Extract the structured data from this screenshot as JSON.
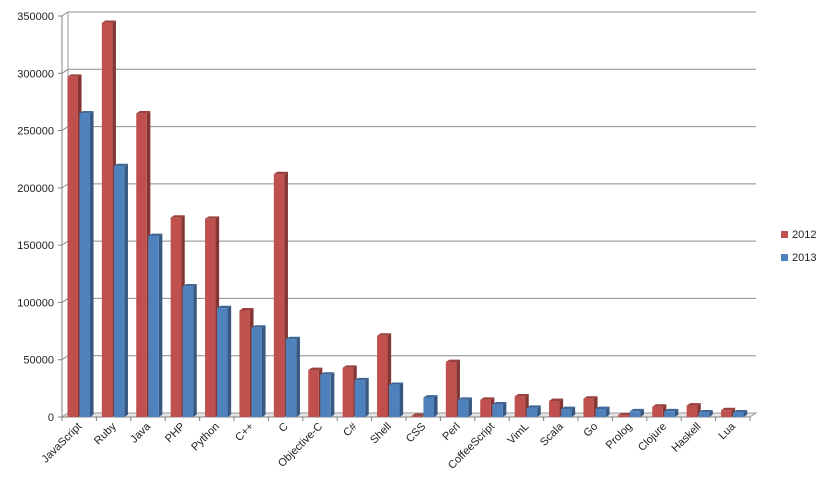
{
  "chart_data": {
    "type": "bar",
    "title": "",
    "xlabel": "",
    "ylabel": "",
    "ylim": [
      0,
      350000
    ],
    "yticks": [
      0,
      50000,
      100000,
      150000,
      200000,
      250000,
      300000,
      350000
    ],
    "ytick_labels": [
      "0",
      "50000",
      "100000",
      "150000",
      "200000",
      "250000",
      "300000",
      "350000"
    ],
    "grid": true,
    "legend_position": "right",
    "categories": [
      "JavaScript",
      "Ruby",
      "Java",
      "PHP",
      "Python",
      "C++",
      "C",
      "Objective-C",
      "C#",
      "Shell",
      "CSS",
      "Perl",
      "CoffeeScript",
      "VimL",
      "Scala",
      "Go",
      "Prolog",
      "Clojure",
      "Haskell",
      "Lua"
    ],
    "series": [
      {
        "name": "2012",
        "color": "#c0504d",
        "values": [
          297000,
          344000,
          265000,
          174000,
          173000,
          93000,
          212000,
          41000,
          43000,
          71000,
          1000,
          48000,
          15000,
          18000,
          14000,
          16000,
          1500,
          9000,
          10000,
          6000
        ]
      },
      {
        "name": "2013",
        "color": "#4f81bd",
        "values": [
          265000,
          219000,
          158000,
          114000,
          95000,
          78000,
          68000,
          37000,
          32000,
          28000,
          17000,
          15000,
          11000,
          8000,
          7000,
          7000,
          5000,
          5000,
          4000,
          4000
        ]
      }
    ]
  }
}
